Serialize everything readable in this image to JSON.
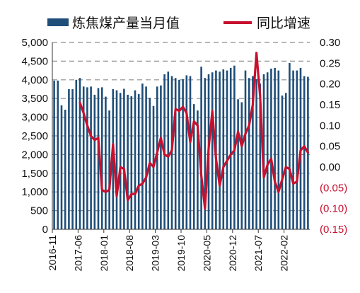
{
  "chart_data": {
    "type": "bar+line",
    "legend": [
      {
        "label": "炼焦煤产量当月值",
        "color": "#1f4e79",
        "kind": "bar"
      },
      {
        "label": "同比增速",
        "color": "#c8102e",
        "kind": "line"
      }
    ],
    "x_ticks": [
      "2016-11",
      "2017-06",
      "2018-01",
      "2018-08",
      "2019-03",
      "2019-10",
      "2020-05",
      "2020-12",
      "2021-07",
      "2022-02"
    ],
    "y_left": {
      "min": 0,
      "max": 5000,
      "ticks": [
        {
          "v": 0,
          "label": "0"
        },
        {
          "v": 500,
          "label": "500"
        },
        {
          "v": 1000,
          "label": "1,000"
        },
        {
          "v": 1500,
          "label": "1,500"
        },
        {
          "v": 2000,
          "label": "2,000"
        },
        {
          "v": 2500,
          "label": "2,500"
        },
        {
          "v": 3000,
          "label": "3,000"
        },
        {
          "v": 3500,
          "label": "3,500"
        },
        {
          "v": 4000,
          "label": "4,000"
        },
        {
          "v": 4500,
          "label": "4,500"
        },
        {
          "v": 5000,
          "label": "5,000"
        }
      ]
    },
    "y_right": {
      "min": -0.15,
      "max": 0.3,
      "ticks": [
        {
          "v": 0.3,
          "label": "0.30"
        },
        {
          "v": 0.25,
          "label": "0.25"
        },
        {
          "v": 0.2,
          "label": "0.20"
        },
        {
          "v": 0.15,
          "label": "0.15"
        },
        {
          "v": 0.1,
          "label": "0.10"
        },
        {
          "v": 0.05,
          "label": "0.05"
        },
        {
          "v": 0.0,
          "label": "0.00"
        },
        {
          "v": -0.05,
          "label": "(0.05)"
        },
        {
          "v": -0.1,
          "label": "(0.10)"
        },
        {
          "v": -0.15,
          "label": "(0.15)"
        }
      ]
    },
    "bars": [
      {
        "x": "2016-11",
        "v": 3980
      },
      {
        "x": "2016-12",
        "v": 3980
      },
      {
        "x": "2017-01",
        "v": 3320
      },
      {
        "x": "2017-02",
        "v": 3200
      },
      {
        "x": "2017-03",
        "v": 3750
      },
      {
        "x": "2017-04",
        "v": 3750
      },
      {
        "x": "2017-05",
        "v": 4000
      },
      {
        "x": "2017-06",
        "v": 4050
      },
      {
        "x": "2017-07",
        "v": 3820
      },
      {
        "x": "2017-08",
        "v": 3800
      },
      {
        "x": "2017-09",
        "v": 3820
      },
      {
        "x": "2017-10",
        "v": 3600
      },
      {
        "x": "2017-11",
        "v": 3780
      },
      {
        "x": "2017-12",
        "v": 3800
      },
      {
        "x": "2018-01",
        "v": 3550
      },
      {
        "x": "2018-02",
        "v": 3180
      },
      {
        "x": "2018-03",
        "v": 3750
      },
      {
        "x": "2018-04",
        "v": 3720
      },
      {
        "x": "2018-05",
        "v": 3650
      },
      {
        "x": "2018-06",
        "v": 3760
      },
      {
        "x": "2018-07",
        "v": 3600
      },
      {
        "x": "2018-08",
        "v": 3560
      },
      {
        "x": "2018-09",
        "v": 3720
      },
      {
        "x": "2018-10",
        "v": 3620
      },
      {
        "x": "2018-11",
        "v": 3900
      },
      {
        "x": "2018-12",
        "v": 3820
      },
      {
        "x": "2019-01",
        "v": 3520
      },
      {
        "x": "2019-02",
        "v": 3300
      },
      {
        "x": "2019-03",
        "v": 3820
      },
      {
        "x": "2019-04",
        "v": 3850
      },
      {
        "x": "2019-05",
        "v": 4150
      },
      {
        "x": "2019-06",
        "v": 4220
      },
      {
        "x": "2019-07",
        "v": 4100
      },
      {
        "x": "2019-08",
        "v": 4050
      },
      {
        "x": "2019-09",
        "v": 4000
      },
      {
        "x": "2019-10",
        "v": 4020
      },
      {
        "x": "2019-11",
        "v": 4120
      },
      {
        "x": "2019-12",
        "v": 4100
      },
      {
        "x": "2020-01",
        "v": 3350
      },
      {
        "x": "2020-02",
        "v": 3180
      },
      {
        "x": "2020-03",
        "v": 4350
      },
      {
        "x": "2020-04",
        "v": 4050
      },
      {
        "x": "2020-05",
        "v": 4150
      },
      {
        "x": "2020-06",
        "v": 4200
      },
      {
        "x": "2020-07",
        "v": 4250
      },
      {
        "x": "2020-08",
        "v": 4220
      },
      {
        "x": "2020-09",
        "v": 4280
      },
      {
        "x": "2020-10",
        "v": 4250
      },
      {
        "x": "2020-11",
        "v": 4320
      },
      {
        "x": "2020-12",
        "v": 4380
      },
      {
        "x": "2021-01",
        "v": 3480
      },
      {
        "x": "2021-02",
        "v": 3400
      },
      {
        "x": "2021-03",
        "v": 4250
      },
      {
        "x": "2021-04",
        "v": 4050
      },
      {
        "x": "2021-05",
        "v": 4100
      },
      {
        "x": "2021-06",
        "v": 4020
      },
      {
        "x": "2021-07",
        "v": 3900
      },
      {
        "x": "2021-08",
        "v": 4150
      },
      {
        "x": "2021-09",
        "v": 4200
      },
      {
        "x": "2021-10",
        "v": 4300
      },
      {
        "x": "2021-11",
        "v": 4320
      },
      {
        "x": "2021-12",
        "v": 4250
      },
      {
        "x": "2022-01",
        "v": 3580
      },
      {
        "x": "2022-02",
        "v": 3650
      },
      {
        "x": "2022-03",
        "v": 4450
      },
      {
        "x": "2022-04",
        "v": 4250
      },
      {
        "x": "2022-05",
        "v": 4250
      },
      {
        "x": "2022-06",
        "v": 4320
      },
      {
        "x": "2022-07",
        "v": 4100
      },
      {
        "x": "2022-08",
        "v": 4080
      }
    ],
    "line": [
      {
        "x": "2017-06",
        "v": 0.155
      },
      {
        "x": "2017-07",
        "v": 0.13
      },
      {
        "x": "2017-08",
        "v": 0.1
      },
      {
        "x": "2017-09",
        "v": 0.075
      },
      {
        "x": "2017-10",
        "v": 0.065
      },
      {
        "x": "2017-11",
        "v": 0.07
      },
      {
        "x": "2017-12",
        "v": -0.055
      },
      {
        "x": "2018-01",
        "v": -0.06
      },
      {
        "x": "2018-02",
        "v": -0.055
      },
      {
        "x": "2018-03",
        "v": 0.055
      },
      {
        "x": "2018-04",
        "v": -0.07
      },
      {
        "x": "2018-05",
        "v": 0.0
      },
      {
        "x": "2018-06",
        "v": -0.005
      },
      {
        "x": "2018-07",
        "v": -0.08
      },
      {
        "x": "2018-08",
        "v": -0.065
      },
      {
        "x": "2018-09",
        "v": -0.065
      },
      {
        "x": "2018-10",
        "v": -0.045
      },
      {
        "x": "2018-11",
        "v": -0.04
      },
      {
        "x": "2018-12",
        "v": -0.025
      },
      {
        "x": "2019-01",
        "v": 0.01
      },
      {
        "x": "2019-02",
        "v": 0.0
      },
      {
        "x": "2019-03",
        "v": 0.035
      },
      {
        "x": "2019-04",
        "v": 0.07
      },
      {
        "x": "2019-05",
        "v": 0.03
      },
      {
        "x": "2019-06",
        "v": 0.025
      },
      {
        "x": "2019-07",
        "v": 0.04
      },
      {
        "x": "2019-08",
        "v": 0.14
      },
      {
        "x": "2019-09",
        "v": 0.135
      },
      {
        "x": "2019-10",
        "v": 0.145
      },
      {
        "x": "2019-11",
        "v": 0.13
      },
      {
        "x": "2019-12",
        "v": 0.06
      },
      {
        "x": "2020-01",
        "v": 0.11
      },
      {
        "x": "2020-02",
        "v": 0.1
      },
      {
        "x": "2020-03",
        "v": -0.02
      },
      {
        "x": "2020-04",
        "v": -0.1
      },
      {
        "x": "2020-05",
        "v": 0.045
      },
      {
        "x": "2020-06",
        "v": 0.135
      },
      {
        "x": "2020-07",
        "v": 0.02
      },
      {
        "x": "2020-08",
        "v": -0.045
      },
      {
        "x": "2020-09",
        "v": 0.0
      },
      {
        "x": "2020-10",
        "v": 0.015
      },
      {
        "x": "2020-11",
        "v": 0.03
      },
      {
        "x": "2020-12",
        "v": 0.04
      },
      {
        "x": "2021-01",
        "v": 0.085
      },
      {
        "x": "2021-02",
        "v": 0.05
      },
      {
        "x": "2021-03",
        "v": 0.08
      },
      {
        "x": "2021-04",
        "v": 0.1
      },
      {
        "x": "2021-05",
        "v": 0.15
      },
      {
        "x": "2021-06",
        "v": 0.275
      },
      {
        "x": "2021-07",
        "v": 0.17
      },
      {
        "x": "2021-08",
        "v": -0.025
      },
      {
        "x": "2021-09",
        "v": 0.005
      },
      {
        "x": "2021-10",
        "v": 0.02
      },
      {
        "x": "2021-11",
        "v": -0.035
      },
      {
        "x": "2021-12",
        "v": -0.06
      },
      {
        "x": "2022-01",
        "v": -0.03
      },
      {
        "x": "2022-02",
        "v": 0.0
      },
      {
        "x": "2022-03",
        "v": -0.005
      },
      {
        "x": "2022-04",
        "v": -0.04
      },
      {
        "x": "2022-05",
        "v": -0.035
      },
      {
        "x": "2022-06",
        "v": 0.04
      },
      {
        "x": "2022-07",
        "v": 0.05
      },
      {
        "x": "2022-08",
        "v": 0.035
      }
    ],
    "grid": true,
    "legend_position": "top"
  }
}
